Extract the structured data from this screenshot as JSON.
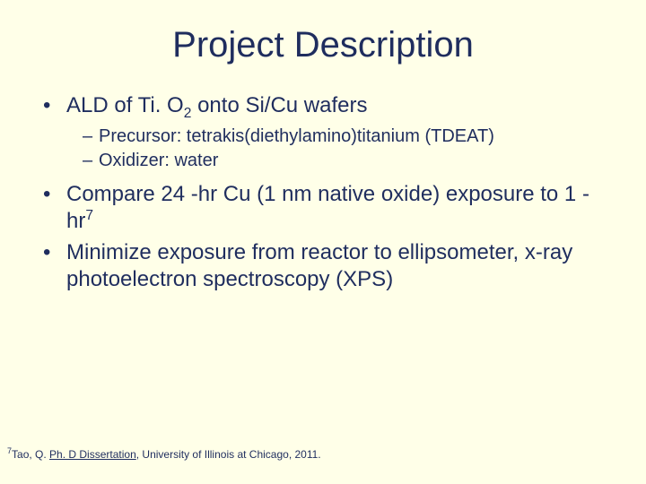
{
  "slide_bg": "#ffffe8",
  "text_color": "#1f2d5e",
  "title": "Project Description",
  "bullets": {
    "b1_pre": "ALD of Ti. O",
    "b1_sub": "2",
    "b1_post": " onto Si/Cu wafers",
    "b1_sub1": "Precursor: tetrakis(diethylamino)titanium (TDEAT)",
    "b1_sub2": "Oxidizer: water",
    "b2_pre": "Compare 24 -hr Cu (1 nm native oxide) exposure to 1 -hr",
    "b2_sup": "7",
    "b3": "Minimize exposure from reactor to ellipsometer, x-ray photoelectron spectroscopy (XPS)"
  },
  "footnote": {
    "ref": "7",
    "author": "Tao, Q. ",
    "title_underlined": "Ph. D Dissertation",
    "rest": ", University of Illinois at Chicago, 2011."
  }
}
